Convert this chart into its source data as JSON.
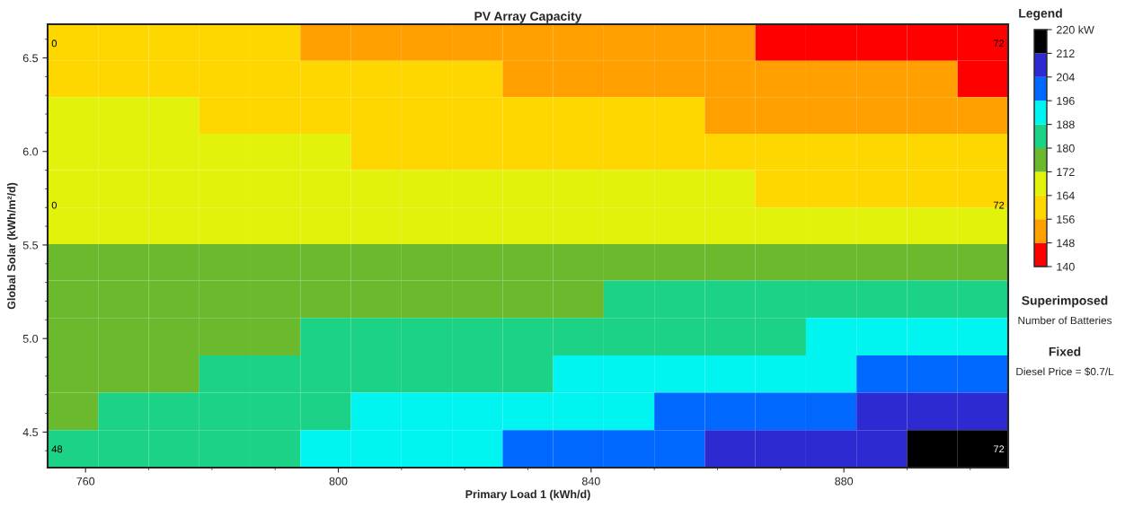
{
  "chart_data": {
    "type": "heatmap",
    "title": "PV Array Capacity",
    "xlabel": "Primary Load 1 (kWh/d)",
    "ylabel": "Global Solar (kWh/m²/d)",
    "legend_title": "Legend",
    "x": [
      758,
      766,
      774,
      782,
      790,
      798,
      806,
      814,
      822,
      830,
      838,
      846,
      854,
      862,
      870,
      878,
      886,
      894,
      902
    ],
    "y": [
      6.58,
      6.39,
      6.19,
      6.0,
      5.8,
      5.6,
      5.41,
      5.21,
      5.01,
      4.81,
      4.61,
      4.41
    ],
    "cells": [
      [
        160,
        160,
        160,
        160,
        160,
        152,
        152,
        152,
        152,
        152,
        152,
        152,
        152,
        152,
        144,
        144,
        144,
        144,
        144
      ],
      [
        160,
        160,
        160,
        160,
        160,
        160,
        160,
        160,
        160,
        152,
        152,
        152,
        152,
        152,
        152,
        152,
        152,
        152,
        144
      ],
      [
        168,
        168,
        168,
        160,
        160,
        160,
        160,
        160,
        160,
        160,
        160,
        160,
        160,
        152,
        152,
        152,
        152,
        152,
        152
      ],
      [
        168,
        168,
        168,
        168,
        168,
        168,
        160,
        160,
        160,
        160,
        160,
        160,
        160,
        160,
        160,
        160,
        160,
        160,
        160
      ],
      [
        168,
        168,
        168,
        168,
        168,
        168,
        168,
        168,
        168,
        168,
        168,
        168,
        168,
        168,
        160,
        160,
        160,
        160,
        160
      ],
      [
        168,
        168,
        168,
        168,
        168,
        168,
        168,
        168,
        168,
        168,
        168,
        168,
        168,
        168,
        168,
        168,
        168,
        168,
        168
      ],
      [
        176,
        176,
        176,
        176,
        176,
        176,
        176,
        176,
        176,
        176,
        176,
        176,
        176,
        176,
        176,
        176,
        176,
        176,
        176
      ],
      [
        176,
        176,
        176,
        176,
        176,
        176,
        176,
        176,
        176,
        176,
        176,
        184,
        184,
        184,
        184,
        184,
        184,
        184,
        184
      ],
      [
        176,
        176,
        176,
        176,
        176,
        184,
        184,
        184,
        184,
        184,
        184,
        184,
        184,
        184,
        184,
        192,
        192,
        192,
        192
      ],
      [
        176,
        176,
        176,
        184,
        184,
        184,
        184,
        184,
        184,
        184,
        192,
        192,
        192,
        192,
        192,
        192,
        200,
        200,
        200
      ],
      [
        176,
        184,
        184,
        184,
        184,
        184,
        192,
        192,
        192,
        192,
        192,
        192,
        200,
        200,
        200,
        200,
        208,
        208,
        208
      ],
      [
        184,
        184,
        184,
        184,
        184,
        192,
        192,
        192,
        192,
        200,
        200,
        200,
        200,
        208,
        208,
        208,
        208,
        216,
        216
      ]
    ],
    "colors": [
      "#ff0000",
      "#ff9f00",
      "#ffd700",
      "#e2f20a",
      "#6bb92d",
      "#1bd286",
      "#00f5f0",
      "#0068ff",
      "#2c2ad0",
      "#000000"
    ],
    "clim": [
      140,
      220
    ],
    "cticks": [
      140,
      148,
      156,
      164,
      172,
      180,
      188,
      196,
      204,
      212,
      {
        "value": 220,
        "label": "220 kW"
      }
    ],
    "xlim": [
      754,
      906
    ],
    "xticks": [
      760,
      800,
      840,
      880
    ],
    "ylim": [
      4.31,
      6.68
    ],
    "yticks": [
      4.5,
      {
        "value": 5,
        "label": "5.0"
      },
      5.5,
      {
        "value": 6,
        "label": "6.0"
      },
      6.5
    ],
    "grid": false,
    "annotations": [
      "0",
      "0",
      "48",
      "72",
      "72",
      "72",
      "Superimposed",
      "Number of Batteries",
      "Fixed",
      "Diesel Price = $0.7/L"
    ]
  }
}
